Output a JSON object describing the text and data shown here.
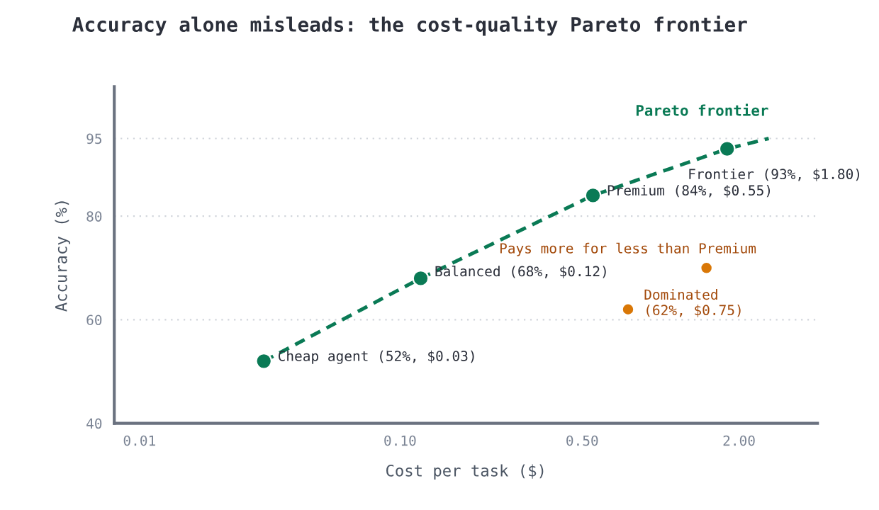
{
  "chart_data": {
    "type": "scatter",
    "title": "Accuracy alone misleads: the cost-quality Pareto frontier",
    "xlabel": "Cost per task ($)",
    "ylabel": "Accuracy (%)",
    "log": "x",
    "xlim": [
      0.008,
      4
    ],
    "xticks": [
      {
        "value": 0.01,
        "label": "0.01"
      },
      {
        "value": 0.1,
        "label": "0.10"
      },
      {
        "value": 0.5,
        "label": "0.50"
      },
      {
        "value": 2,
        "label": "2.00"
      }
    ],
    "ylim": [
      40,
      105
    ],
    "yticks": [
      40,
      60,
      80,
      95
    ],
    "grid": "y",
    "legend": false,
    "marker": "circle",
    "series": [
      {
        "name": "Pareto frontier",
        "type": "line",
        "marker": "none",
        "line_style": "dashed",
        "color": "#0a7a55",
        "x": [
          0.03,
          0.12,
          0.55,
          1.8,
          2.6
        ],
        "values": [
          52,
          68,
          84,
          93,
          95
        ]
      },
      {
        "color": "#0a7a55",
        "x": [
          0.03,
          0.12,
          0.55,
          1.8
        ],
        "values": [
          52,
          68,
          84,
          93
        ]
      },
      {
        "color": "#d97706",
        "x": [
          0.75,
          1.5
        ],
        "values": [
          62,
          70
        ]
      }
    ],
    "annotations": [
      {
        "text": "Cheap agent (52%, $0.03)",
        "x": 0.03,
        "y": 52
      },
      {
        "text": "Balanced (68%, $0.12)",
        "x": 0.12,
        "y": 68
      },
      {
        "text": "Premium (84%, $0.55)",
        "x": 0.55,
        "y": 84
      },
      {
        "text": "Frontier (93%, $1.80)",
        "x": 1.8,
        "y": 93
      },
      {
        "text": "Dominated\n(62%, $0.75)",
        "x": 0.75,
        "y": 62
      },
      {
        "text": "Pays more for less than Premium",
        "x": 1.5,
        "y": 70
      }
    ]
  }
}
